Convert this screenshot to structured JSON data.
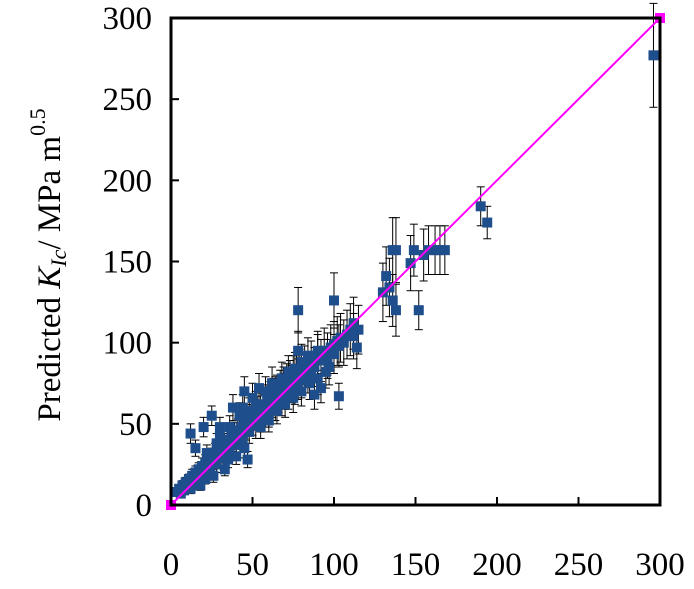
{
  "chart_data": {
    "type": "scatter",
    "title": "",
    "xlabel": "",
    "ylabel": {
      "prefix": "Predicted ",
      "symbol": "K",
      "subscript": "Ic",
      "unit": "/  MPa m",
      "superscript": "0.5"
    },
    "xlim": [
      0,
      300
    ],
    "ylim": [
      0,
      300
    ],
    "xticks": [
      "0",
      "50",
      "100",
      "150",
      "200",
      "250",
      "300"
    ],
    "yticks": [
      "0",
      "50",
      "100",
      "150",
      "200",
      "250",
      "300"
    ],
    "grid": false,
    "legend": "none",
    "colors": {
      "points": "#1f4e8c",
      "line": "#ff00ff",
      "error_bars": "#000000"
    },
    "series": [
      {
        "kind": "points",
        "points": [
          [
            3,
            8,
            2
          ],
          [
            5,
            10,
            2
          ],
          [
            6,
            7,
            2
          ],
          [
            7,
            12,
            3
          ],
          [
            8,
            9,
            2
          ],
          [
            9,
            14,
            3
          ],
          [
            10,
            11,
            3
          ],
          [
            11,
            16,
            3
          ],
          [
            12,
            10,
            3
          ],
          [
            13,
            18,
            4
          ],
          [
            14,
            15,
            3
          ],
          [
            15,
            20,
            4
          ],
          [
            16,
            13,
            3
          ],
          [
            17,
            22,
            4
          ],
          [
            18,
            19,
            4
          ],
          [
            19,
            24,
            5
          ],
          [
            20,
            17,
            4
          ],
          [
            21,
            26,
            5
          ],
          [
            22,
            23,
            4
          ],
          [
            23,
            28,
            5
          ],
          [
            24,
            21,
            4
          ],
          [
            25,
            30,
            5
          ],
          [
            26,
            27,
            5
          ],
          [
            27,
            32,
            6
          ],
          [
            28,
            25,
            5
          ],
          [
            29,
            34,
            6
          ],
          [
            30,
            31,
            5
          ],
          [
            31,
            36,
            6
          ],
          [
            32,
            29,
            5
          ],
          [
            33,
            38,
            6
          ],
          [
            34,
            35,
            6
          ],
          [
            35,
            40,
            7
          ],
          [
            36,
            33,
            6
          ],
          [
            37,
            42,
            7
          ],
          [
            38,
            39,
            6
          ],
          [
            39,
            44,
            7
          ],
          [
            40,
            37,
            6
          ],
          [
            41,
            46,
            7
          ],
          [
            42,
            43,
            7
          ],
          [
            43,
            48,
            8
          ],
          [
            44,
            41,
            7
          ],
          [
            45,
            50,
            8
          ],
          [
            46,
            47,
            7
          ],
          [
            47,
            52,
            8
          ],
          [
            48,
            45,
            7
          ],
          [
            49,
            54,
            8
          ],
          [
            50,
            51,
            8
          ],
          [
            51,
            56,
            9
          ],
          [
            52,
            49,
            8
          ],
          [
            53,
            58,
            9
          ],
          [
            54,
            55,
            8
          ],
          [
            55,
            60,
            9
          ],
          [
            56,
            53,
            8
          ],
          [
            57,
            62,
            9
          ],
          [
            58,
            59,
            9
          ],
          [
            59,
            64,
            10
          ],
          [
            60,
            57,
            9
          ],
          [
            61,
            66,
            10
          ],
          [
            62,
            63,
            9
          ],
          [
            63,
            68,
            10
          ],
          [
            64,
            61,
            9
          ],
          [
            65,
            70,
            10
          ],
          [
            66,
            67,
            10
          ],
          [
            67,
            72,
            11
          ],
          [
            68,
            65,
            10
          ],
          [
            69,
            74,
            11
          ],
          [
            70,
            71,
            10
          ],
          [
            71,
            76,
            11
          ],
          [
            72,
            69,
            10
          ],
          [
            73,
            78,
            11
          ],
          [
            74,
            75,
            11
          ],
          [
            75,
            80,
            12
          ],
          [
            76,
            73,
            11
          ],
          [
            77,
            82,
            12
          ],
          [
            78,
            79,
            11
          ],
          [
            79,
            84,
            12
          ],
          [
            80,
            77,
            11
          ],
          [
            82,
            86,
            12
          ],
          [
            84,
            81,
            12
          ],
          [
            86,
            88,
            13
          ],
          [
            88,
            85,
            12
          ],
          [
            90,
            92,
            13
          ],
          [
            92,
            89,
            13
          ],
          [
            94,
            95,
            14
          ],
          [
            96,
            93,
            13
          ],
          [
            98,
            97,
            14
          ],
          [
            100,
            99,
            14
          ],
          [
            102,
            101,
            15
          ],
          [
            104,
            103,
            15
          ],
          [
            108,
            105,
            15
          ],
          [
            110,
            108,
            16
          ],
          [
            35,
            28,
            5
          ],
          [
            40,
            30,
            5
          ],
          [
            45,
            35,
            6
          ],
          [
            30,
            48,
            6
          ],
          [
            25,
            55,
            6
          ],
          [
            20,
            48,
            6
          ],
          [
            15,
            35,
            5
          ],
          [
            12,
            44,
            6
          ],
          [
            30,
            42,
            6
          ],
          [
            38,
            60,
            8
          ],
          [
            45,
            70,
            9
          ],
          [
            55,
            48,
            7
          ],
          [
            60,
            52,
            7
          ],
          [
            65,
            58,
            8
          ],
          [
            70,
            62,
            8
          ],
          [
            75,
            66,
            9
          ],
          [
            80,
            70,
            9
          ],
          [
            85,
            75,
            10
          ],
          [
            90,
            78,
            10
          ],
          [
            88,
            68,
            9
          ],
          [
            92,
            72,
            9
          ],
          [
            95,
            82,
            10
          ],
          [
            78,
            95,
            12
          ],
          [
            80,
            88,
            11
          ],
          [
            72,
            82,
            10
          ],
          [
            68,
            78,
            10
          ],
          [
            62,
            75,
            10
          ],
          [
            58,
            70,
            9
          ],
          [
            50,
            66,
            9
          ],
          [
            44,
            60,
            8
          ],
          [
            48,
            58,
            8
          ],
          [
            52,
            62,
            8
          ],
          [
            55,
            52,
            7
          ],
          [
            58,
            55,
            7
          ],
          [
            62,
            60,
            8
          ],
          [
            66,
            65,
            8
          ],
          [
            70,
            68,
            9
          ],
          [
            74,
            72,
            9
          ],
          [
            78,
            74,
            9
          ],
          [
            82,
            79,
            10
          ],
          [
            86,
            83,
            10
          ],
          [
            47,
            28,
            5
          ],
          [
            33,
            22,
            4
          ],
          [
            26,
            18,
            4
          ],
          [
            21,
            16,
            3
          ],
          [
            18,
            12,
            3
          ],
          [
            28,
            38,
            6
          ],
          [
            22,
            32,
            5
          ],
          [
            36,
            48,
            7
          ],
          [
            42,
            55,
            8
          ],
          [
            54,
            72,
            9
          ],
          [
            64,
            70,
            9
          ],
          [
            76,
            84,
            10
          ],
          [
            84,
            92,
            11
          ],
          [
            90,
            95,
            12
          ],
          [
            96,
            90,
            12
          ],
          [
            97,
            85,
            11
          ],
          [
            100,
            93,
            12
          ],
          [
            103,
            98,
            13
          ],
          [
            106,
            100,
            14
          ],
          [
            112,
            104,
            14
          ],
          [
            78,
            120,
            14
          ],
          [
            100,
            126,
            17
          ],
          [
            103,
            67,
            8
          ],
          [
            112,
            112,
            16
          ],
          [
            115,
            108,
            15
          ],
          [
            114,
            97,
            13
          ],
          [
            130,
            131,
            18
          ],
          [
            132,
            141,
            18
          ],
          [
            134,
            134,
            18
          ],
          [
            136,
            126,
            16
          ],
          [
            136,
            157,
            20
          ],
          [
            138,
            157,
            20
          ],
          [
            138,
            120,
            16
          ],
          [
            147,
            149,
            17
          ],
          [
            149,
            157,
            16
          ],
          [
            152,
            120,
            12
          ],
          [
            155,
            154,
            16
          ],
          [
            158,
            157,
            15
          ],
          [
            162,
            157,
            15
          ],
          [
            165,
            157,
            15
          ],
          [
            168,
            157,
            15
          ],
          [
            190,
            184,
            12
          ],
          [
            194,
            174,
            10
          ],
          [
            296,
            277,
            32
          ]
        ]
      },
      {
        "kind": "line",
        "points": [
          [
            0,
            0
          ],
          [
            300,
            300
          ]
        ]
      }
    ]
  }
}
